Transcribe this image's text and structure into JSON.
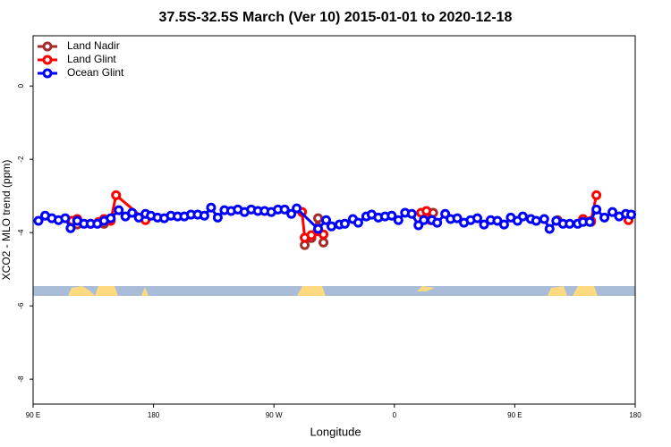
{
  "chart_data": {
    "type": "line",
    "title": "37.5S-32.5S March (Ver 10)   2015-01-01 to 2020-12-18",
    "x_label": "Longitude",
    "y_label": "XCO2 - MLO trend (ppm)",
    "xlim": [
      90,
      540
    ],
    "xticks": [
      {
        "value": 90,
        "label": "90 E"
      },
      {
        "value": 180,
        "label": "180"
      },
      {
        "value": 270,
        "label": "90 W"
      },
      {
        "value": 360,
        "label": "0"
      },
      {
        "value": 450,
        "label": "90 E"
      },
      {
        "value": 540,
        "label": "180"
      }
    ],
    "ylim": [
      -8.68,
      1.37
    ],
    "yticks": [
      0,
      -2,
      -4,
      -6,
      -8
    ],
    "legend": "top-left",
    "series": [
      {
        "name": "Land Nadir",
        "color": "#a52a2a",
        "x": [
          123,
          128,
          143,
          148,
          200,
          293,
          298,
          303,
          307,
          350,
          389,
          400,
          482,
          490,
          507
        ],
        "values": [
          -3.78,
          null,
          -3.76,
          -3.63,
          null,
          -4.34,
          -4.15,
          -3.61,
          -4.27,
          null,
          -3.46,
          null,
          -3.66,
          null,
          -3.71
        ]
      },
      {
        "name": "Land Glint",
        "color": "#ff0000",
        "x": [
          119,
          123,
          133,
          139,
          143,
          148,
          152,
          174,
          230,
          291,
          293,
          298,
          307,
          350,
          380,
          384,
          387,
          450,
          501,
          507,
          511,
          520,
          535
        ],
        "values": [
          -3.68,
          -3.63,
          -3.76,
          -3.71,
          -3.63,
          -3.68,
          -2.98,
          -3.66,
          null,
          -3.44,
          -4.14,
          -4.07,
          -4.05,
          null,
          -3.46,
          -3.41,
          -3.66,
          null,
          -3.63,
          -3.68,
          -2.98,
          null,
          -3.66
        ]
      },
      {
        "name": "Ocean Glint",
        "color": "#0000ff",
        "x": [
          94,
          99,
          104,
          109,
          114,
          118,
          123,
          128,
          133,
          138,
          143,
          148,
          154,
          159,
          164,
          169,
          174,
          178,
          183,
          188,
          193,
          198,
          203,
          208,
          213,
          218,
          223,
          228,
          233,
          238,
          243,
          248,
          253,
          258,
          263,
          268,
          273,
          278,
          283,
          287,
          303,
          309,
          313,
          319,
          323,
          329,
          333,
          339,
          343,
          348,
          353,
          358,
          363,
          368,
          373,
          378,
          382,
          388,
          392,
          398,
          402,
          407,
          412,
          417,
          422,
          427,
          432,
          437,
          442,
          447,
          452,
          456,
          462,
          466,
          472,
          476,
          481,
          486,
          491,
          497,
          501,
          506,
          511,
          517,
          523,
          528,
          533,
          537
        ],
        "values": [
          -3.68,
          -3.54,
          -3.61,
          -3.66,
          -3.61,
          -3.88,
          -3.68,
          -3.76,
          -3.76,
          -3.76,
          -3.68,
          -3.61,
          -3.39,
          -3.56,
          -3.46,
          -3.59,
          -3.49,
          -3.54,
          -3.59,
          -3.61,
          -3.54,
          -3.56,
          -3.56,
          -3.51,
          -3.51,
          -3.54,
          -3.32,
          -3.59,
          -3.39,
          -3.41,
          -3.37,
          -3.44,
          -3.37,
          -3.41,
          -3.41,
          -3.44,
          -3.37,
          -3.37,
          -3.49,
          -3.34,
          -3.9,
          -3.66,
          -3.83,
          -3.78,
          -3.76,
          -3.63,
          -3.73,
          -3.56,
          -3.51,
          -3.59,
          -3.56,
          -3.54,
          -3.66,
          -3.46,
          -3.49,
          -3.8,
          -3.66,
          -3.66,
          -3.73,
          -3.49,
          -3.63,
          -3.61,
          -3.73,
          -3.66,
          -3.61,
          -3.78,
          -3.66,
          -3.68,
          -3.78,
          -3.59,
          -3.68,
          -3.56,
          -3.63,
          -3.68,
          -3.63,
          -3.9,
          -3.68,
          -3.76,
          -3.76,
          -3.76,
          -3.71,
          -3.71,
          -3.37,
          -3.59,
          -3.44,
          -3.56,
          -3.49,
          -3.51
        ]
      }
    ]
  }
}
